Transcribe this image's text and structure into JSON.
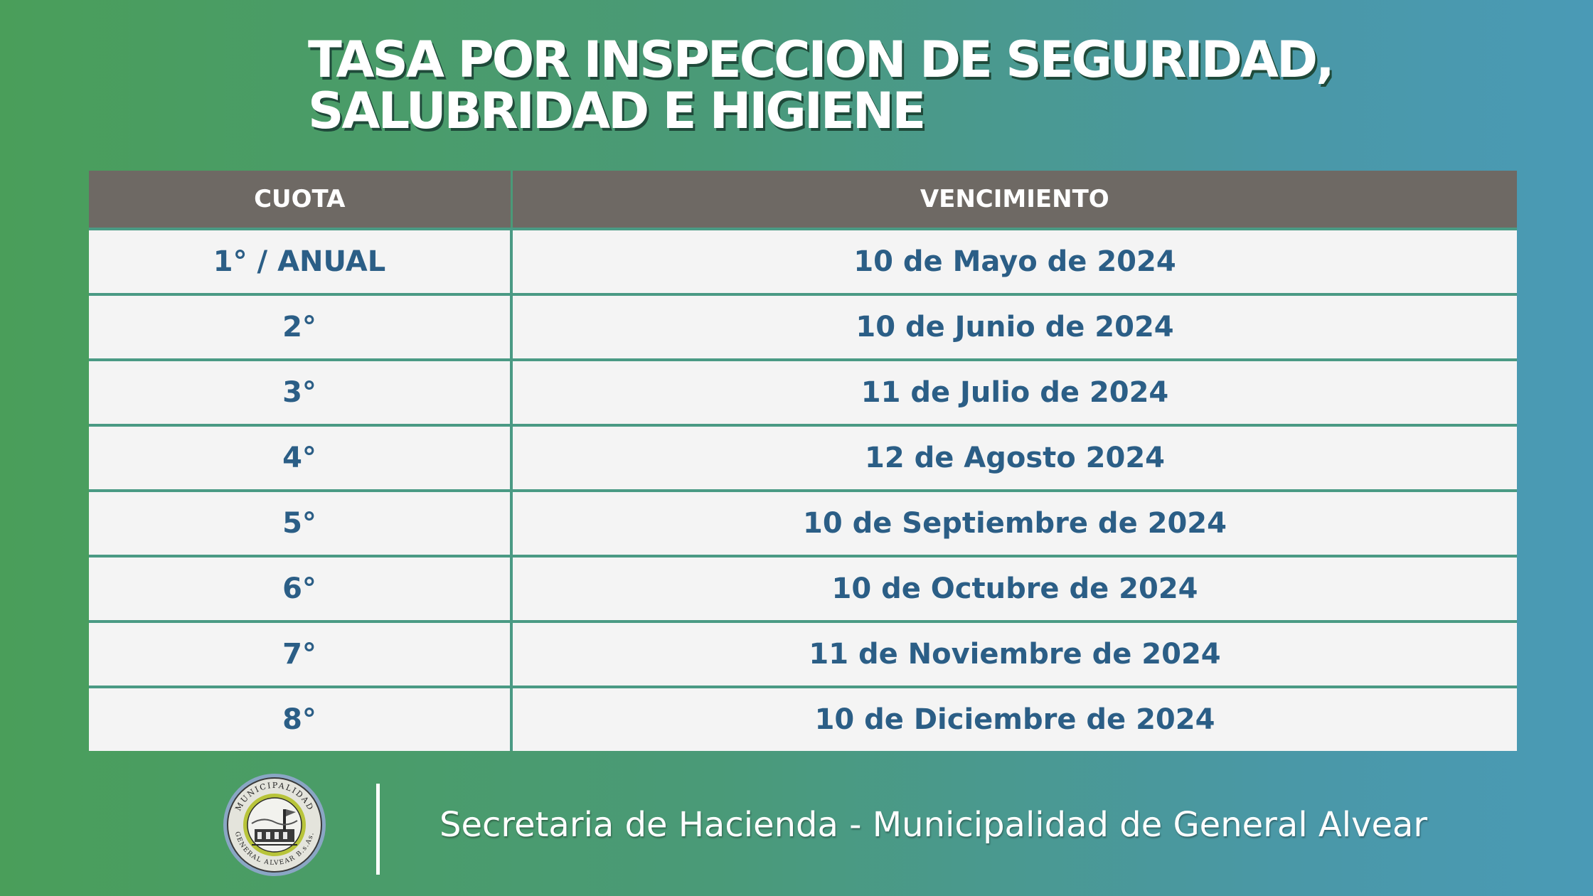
{
  "title": {
    "line1": "TASA POR INSPECCION DE SEGURIDAD,",
    "line2": "SALUBRIDAD E HIGIENE"
  },
  "table": {
    "headers": [
      "CUOTA",
      "VENCIMIENTO"
    ],
    "rows": [
      {
        "cuota": "1° / ANUAL",
        "vencimiento": "10 de Mayo de 2024"
      },
      {
        "cuota": "2°",
        "vencimiento": "10 de Junio de 2024"
      },
      {
        "cuota": "3°",
        "vencimiento": "11 de Julio de 2024"
      },
      {
        "cuota": "4°",
        "vencimiento": "12 de Agosto 2024"
      },
      {
        "cuota": "5°",
        "vencimiento": "10 de Septiembre de 2024"
      },
      {
        "cuota": "6°",
        "vencimiento": "10 de Octubre de 2024"
      },
      {
        "cuota": "7°",
        "vencimiento": "11 de Noviembre de 2024"
      },
      {
        "cuota": "8°",
        "vencimiento": "10 de Diciembre de 2024"
      }
    ]
  },
  "logo": {
    "icon": "municipal-seal-icon",
    "text_top": "MUNICIPALIDAD",
    "text_bottom": "GENERAL ALVEAR B.s.As."
  },
  "footer": {
    "text": "Secretaria de Hacienda - Municipalidad de General Alvear"
  },
  "colors": {
    "header_bg": "#6e6964",
    "cell_bg": "#f4f4f4",
    "cell_text": "#2b5e86",
    "gradient_left": "#4a9e5a",
    "gradient_right": "#4a9ab6"
  }
}
